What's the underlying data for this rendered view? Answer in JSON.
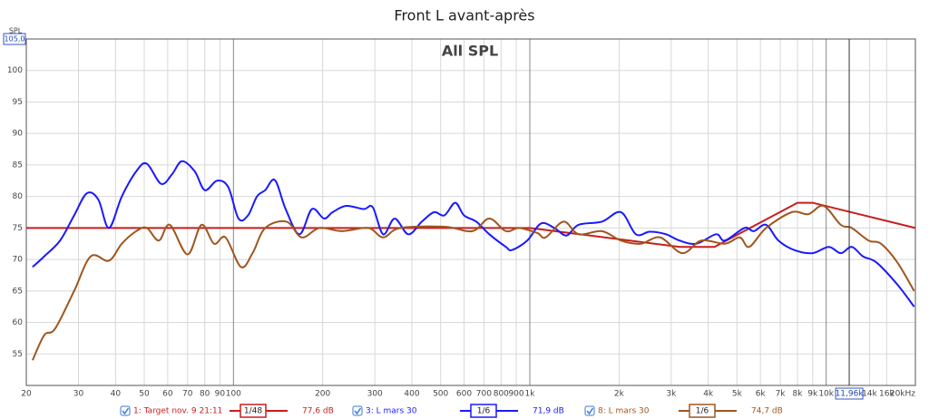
{
  "chart_data": {
    "type": "line",
    "title": "Front L avant-après",
    "subtitle": "All SPL",
    "y_label": "SPL",
    "log_x": true,
    "grid": true,
    "xlim": [
      20,
      20000
    ],
    "ylim": [
      50,
      105
    ],
    "xticks": [
      20,
      30,
      40,
      50,
      60,
      70,
      80,
      90,
      100,
      200,
      300,
      400,
      500,
      600,
      700,
      800,
      900,
      {
        "value": 1000,
        "label": "1k"
      },
      {
        "value": 2000,
        "label": "2k"
      },
      {
        "value": 3000,
        "label": "3k"
      },
      {
        "value": 4000,
        "label": "4k"
      },
      {
        "value": 5000,
        "label": "5k"
      },
      {
        "value": 6000,
        "label": "6k"
      },
      {
        "value": 7000,
        "label": "7k"
      },
      {
        "value": 8000,
        "label": "8k"
      },
      {
        "value": 9000,
        "label": "9k"
      },
      {
        "value": 10000,
        "label": "10k"
      },
      {
        "value": 14000,
        "label": "14k"
      },
      {
        "value": 16000,
        "label": "16k"
      },
      {
        "value": 20000,
        "label": "20kHz"
      }
    ],
    "yticks": [
      55,
      60,
      65,
      70,
      75,
      80,
      85,
      90,
      95,
      100,
      {
        "value": 105,
        "label": "105,0"
      }
    ],
    "cursor": {
      "value": 11960,
      "label": "11,96k"
    },
    "series": [
      {
        "name": "1: Target nov. 9 21:11",
        "smoothing": "1/48",
        "level": "77,6 dB",
        "color": "#c81e1e",
        "x": [
          20,
          1000,
          3200,
          4200,
          8000,
          9000,
          20000
        ],
        "values": [
          75,
          75,
          72,
          72,
          79,
          79,
          75
        ]
      },
      {
        "name": "3: L mars 30",
        "smoothing": "1/6",
        "level": "71,9 dB",
        "color": "#1a1aff",
        "x": [
          21,
          23,
          26,
          29,
          32,
          35,
          38,
          42,
          47,
          51,
          57,
          62,
          67,
          74,
          80,
          88,
          96,
          104,
          112,
          120,
          128,
          138,
          150,
          167,
          184,
          202,
          216,
          240,
          275,
          295,
          320,
          350,
          389,
          432,
          475,
          515,
          560,
          600,
          660,
          730,
          830,
          870,
          980,
          1090,
          1210,
          1330,
          1460,
          1750,
          2030,
          2280,
          2540,
          2880,
          3200,
          3650,
          4250,
          4550,
          5300,
          5700,
          6270,
          6900,
          7800,
          9000,
          10200,
          11200,
          12200,
          13300,
          14800,
          17400,
          19800
        ],
        "values": [
          68.8,
          70.5,
          73,
          77,
          80.5,
          79.5,
          75,
          80,
          84,
          85.2,
          82,
          83.5,
          85.6,
          84,
          81,
          82.5,
          81.5,
          76.5,
          77,
          80,
          81,
          82.6,
          78,
          74,
          78,
          76.5,
          77.5,
          78.5,
          78,
          78.3,
          74,
          76.5,
          74,
          76,
          77.5,
          77,
          79,
          77,
          76,
          74,
          72,
          71.5,
          73,
          75.7,
          75,
          73.8,
          75.5,
          76,
          77.5,
          74,
          74.4,
          74,
          73,
          72.5,
          74,
          73,
          75,
          74.5,
          75.5,
          73,
          71.5,
          71,
          72,
          71,
          72,
          70.5,
          69.5,
          66,
          62.5
        ]
      },
      {
        "name": "8: L mars 30",
        "smoothing": "1/6",
        "level": "74,7 dB",
        "color": "#a0561e",
        "x": [
          21,
          23,
          25,
          29,
          33,
          38,
          42,
          47,
          51,
          56,
          61,
          70,
          78,
          86,
          94,
          106,
          116,
          128,
          151,
          170,
          195,
          232,
          285,
          320,
          365,
          515,
          640,
          730,
          830,
          920,
          1060,
          1130,
          1300,
          1460,
          1750,
          2030,
          2370,
          2750,
          3270,
          3790,
          4550,
          5110,
          5500,
          6270,
          7650,
          8700,
          9800,
          11200,
          12200,
          13900,
          15300,
          17400,
          19800
        ],
        "values": [
          54,
          58,
          59,
          65,
          70.5,
          69.8,
          72.5,
          74.5,
          75,
          73,
          75.5,
          70.8,
          75.5,
          72.5,
          73.5,
          68.8,
          71,
          75,
          76,
          73.5,
          75,
          74.5,
          75,
          73.5,
          75,
          75.2,
          74.5,
          76.5,
          74.5,
          75,
          74.2,
          73.5,
          76,
          74,
          74.5,
          73,
          72.5,
          73.5,
          71,
          73,
          72.5,
          73.5,
          72,
          75,
          77.5,
          77.2,
          78.5,
          75.5,
          75,
          73,
          72.5,
          69.5,
          65
        ]
      }
    ]
  }
}
